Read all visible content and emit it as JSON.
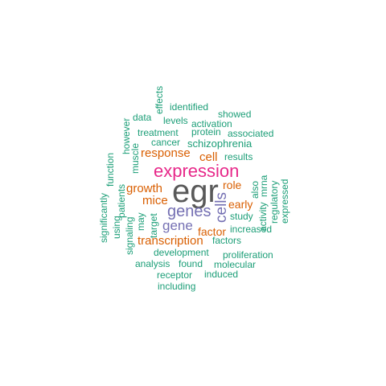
{
  "words": {
    "egr": "egr",
    "expression": "expression",
    "genes": "genes",
    "cells": "cells",
    "gene": "gene",
    "transcription": "transcription",
    "response": "response",
    "cell": "cell",
    "growth": "growth",
    "mice": "mice",
    "role": "role",
    "early": "early",
    "factor": "factor",
    "effects": "effects",
    "identified": "identified",
    "data": "data",
    "levels": "levels",
    "showed": "showed",
    "activation": "activation",
    "treatment": "treatment",
    "protein": "protein",
    "associated": "associated",
    "cancer": "cancer",
    "schizophrenia": "schizophrenia",
    "however": "however",
    "muscle": "muscle",
    "function": "function",
    "results": "results",
    "also": "also",
    "mrna": "mrna",
    "significantly": "significantly",
    "patients": "patients",
    "using": "using",
    "activity": "activity",
    "regulatory": "regulatory",
    "expressed": "expressed",
    "may": "may",
    "target": "target",
    "study": "study",
    "increased": "increased",
    "signaling": "signaling",
    "factors": "factors",
    "development": "development",
    "proliferation": "proliferation",
    "analysis": "analysis",
    "found": "found",
    "molecular": "molecular",
    "receptor": "receptor",
    "induced": "induced",
    "including": "including"
  },
  "colors": {
    "teal": "#1b9e77",
    "orange": "#d95f02",
    "purple": "#7570b3",
    "pink": "#e7298a",
    "gray": "#595959"
  }
}
